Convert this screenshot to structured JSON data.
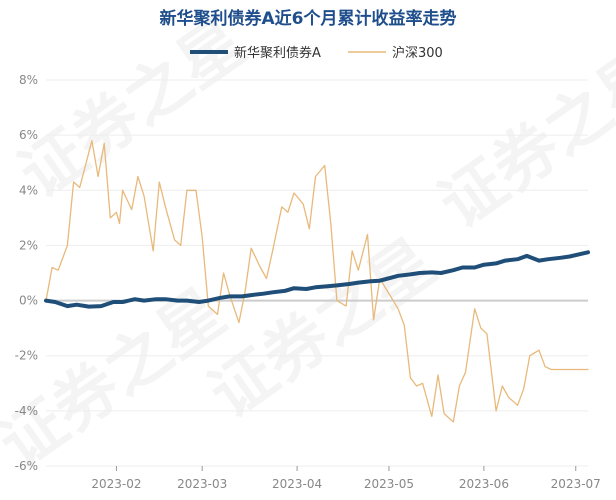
{
  "chart_data": {
    "type": "line",
    "title": "新华聚利债券A近6个月累计收益率走势",
    "xlabel": "",
    "ylabel": "",
    "x_tick_labels": [
      "2023-02",
      "2023-03",
      "2023-04",
      "2023-05",
      "2023-06",
      "2023-07"
    ],
    "y_tick_labels": [
      "8%",
      "6%",
      "4%",
      "2%",
      "0%",
      "-2%",
      "-4%",
      "-6%"
    ],
    "y_ticks": [
      8,
      6,
      4,
      2,
      0,
      -2,
      -4,
      -6
    ],
    "ylim": [
      -6,
      8
    ],
    "xlim": [
      "2023-01-09",
      "2023-07-05"
    ],
    "legend_position": "top-center",
    "grid": "horizontal",
    "series": [
      {
        "name": "新华聚利债券A",
        "color": "#1f4e79",
        "x": [
          "2023-01-09",
          "2023-01-12",
          "2023-01-16",
          "2023-01-19",
          "2023-01-23",
          "2023-01-27",
          "2023-01-31",
          "2023-02-03",
          "2023-02-07",
          "2023-02-10",
          "2023-02-14",
          "2023-02-17",
          "2023-02-21",
          "2023-02-24",
          "2023-02-28",
          "2023-03-03",
          "2023-03-07",
          "2023-03-10",
          "2023-03-14",
          "2023-03-17",
          "2023-03-21",
          "2023-03-24",
          "2023-03-28",
          "2023-03-31",
          "2023-04-04",
          "2023-04-07",
          "2023-04-11",
          "2023-04-14",
          "2023-04-18",
          "2023-04-21",
          "2023-04-25",
          "2023-04-28",
          "2023-05-04",
          "2023-05-08",
          "2023-05-11",
          "2023-05-15",
          "2023-05-18",
          "2023-05-22",
          "2023-05-25",
          "2023-05-29",
          "2023-06-01",
          "2023-06-05",
          "2023-06-08",
          "2023-06-12",
          "2023-06-15",
          "2023-06-19",
          "2023-06-22",
          "2023-06-26",
          "2023-06-29",
          "2023-07-03",
          "2023-07-05"
        ],
        "values": [
          0.0,
          -0.05,
          -0.2,
          -0.15,
          -0.22,
          -0.2,
          -0.05,
          -0.05,
          0.05,
          0.0,
          0.05,
          0.05,
          0.0,
          0.0,
          -0.05,
          0.0,
          0.1,
          0.15,
          0.15,
          0.2,
          0.25,
          0.3,
          0.35,
          0.45,
          0.42,
          0.48,
          0.52,
          0.55,
          0.6,
          0.65,
          0.7,
          0.72,
          0.9,
          0.95,
          1.0,
          1.02,
          1.0,
          1.1,
          1.2,
          1.2,
          1.3,
          1.35,
          1.45,
          1.5,
          1.62,
          1.45,
          1.5,
          1.55,
          1.6,
          1.7,
          1.75
        ]
      },
      {
        "name": "沪深300",
        "color": "#e8b97a",
        "x": [
          "2023-01-09",
          "2023-01-11",
          "2023-01-13",
          "2023-01-16",
          "2023-01-18",
          "2023-01-20",
          "2023-01-24",
          "2023-01-26",
          "2023-01-28",
          "2023-01-30",
          "2023-02-01",
          "2023-02-02",
          "2023-02-03",
          "2023-02-06",
          "2023-02-08",
          "2023-02-10",
          "2023-02-13",
          "2023-02-15",
          "2023-02-17",
          "2023-02-20",
          "2023-02-22",
          "2023-02-24",
          "2023-02-27",
          "2023-03-01",
          "2023-03-03",
          "2023-03-06",
          "2023-03-08",
          "2023-03-10",
          "2023-03-13",
          "2023-03-15",
          "2023-03-17",
          "2023-03-20",
          "2023-03-22",
          "2023-03-24",
          "2023-03-27",
          "2023-03-29",
          "2023-03-31",
          "2023-04-03",
          "2023-04-05",
          "2023-04-07",
          "2023-04-10",
          "2023-04-12",
          "2023-04-14",
          "2023-04-17",
          "2023-04-19",
          "2023-04-21",
          "2023-04-24",
          "2023-04-26",
          "2023-04-28",
          "2023-05-04",
          "2023-05-06",
          "2023-05-08",
          "2023-05-10",
          "2023-05-12",
          "2023-05-15",
          "2023-05-17",
          "2023-05-19",
          "2023-05-22",
          "2023-05-24",
          "2023-05-26",
          "2023-05-29",
          "2023-05-31",
          "2023-06-02",
          "2023-06-05",
          "2023-06-07",
          "2023-06-09",
          "2023-06-12",
          "2023-06-14",
          "2023-06-16",
          "2023-06-19",
          "2023-06-21",
          "2023-06-23",
          "2023-06-26",
          "2023-06-28",
          "2023-06-30",
          "2023-07-03",
          "2023-07-05"
        ],
        "values": [
          0.0,
          1.2,
          1.1,
          2.0,
          4.3,
          4.1,
          5.8,
          4.5,
          5.7,
          3.0,
          3.2,
          2.8,
          4.0,
          3.3,
          4.5,
          3.8,
          1.8,
          4.3,
          3.4,
          2.2,
          2.0,
          4.0,
          4.0,
          2.3,
          -0.2,
          -0.5,
          1.0,
          0.2,
          -0.8,
          0.3,
          1.9,
          1.2,
          0.8,
          1.8,
          3.4,
          3.2,
          3.9,
          3.5,
          2.6,
          4.5,
          4.9,
          2.8,
          0.0,
          -0.2,
          1.8,
          1.1,
          2.4,
          -0.7,
          0.8,
          -0.3,
          -0.9,
          -2.8,
          -3.1,
          -3.0,
          -4.2,
          -2.7,
          -4.1,
          -4.4,
          -3.1,
          -2.6,
          -0.3,
          -1.0,
          -1.2,
          -4.0,
          -3.1,
          -3.5,
          -3.8,
          -3.2,
          -2.0,
          -1.8,
          -2.4,
          -2.5,
          -2.5,
          -2.5,
          -2.5,
          -2.5,
          -2.5
        ]
      }
    ]
  },
  "watermark_text": "证券之星"
}
